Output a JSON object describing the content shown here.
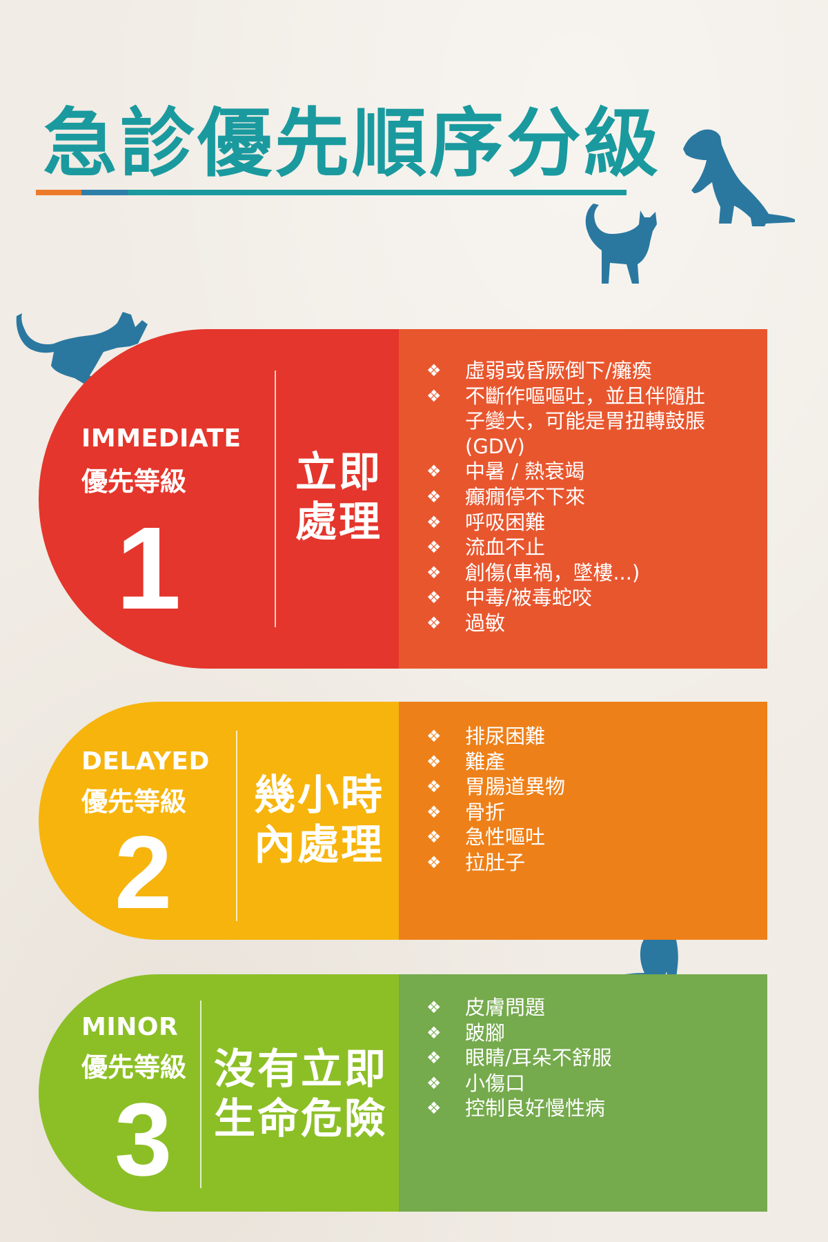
{
  "title": "急診優先順序分級",
  "colors": {
    "title": "#1a9a9e",
    "silhouette": "#2a78a0",
    "immediate_left": "#e4362c",
    "immediate_right": "#e8562e",
    "delayed_left": "#f6b40d",
    "delayed_right": "#ee8019",
    "minor_left": "#8cbf26",
    "minor_right": "#75aa4d"
  },
  "icons": [
    "dog-silhouette-icon",
    "cat-silhouette-icon",
    "diamond-bullet-icon"
  ],
  "levels": [
    {
      "en": "IMMEDIATE",
      "zh": "優先等級",
      "number": "1",
      "action_lines": [
        "立即",
        "處理"
      ],
      "bullet": "❖",
      "items": [
        "虛弱或昏厥倒下/癱瘓",
        "不斷作嘔嘔吐，並且伴隨肚",
        "子變大，可能是胃扭轉鼓脹",
        "(GDV)",
        "中暑 / 熱衰竭",
        "癲癇停不下來",
        "呼吸困難",
        "流血不止",
        "創傷(車禍，墜樓...)",
        "中毒/被毒蛇咬",
        "過敏"
      ]
    },
    {
      "en": "DELAYED",
      "zh": "優先等級",
      "number": "2",
      "action_lines": [
        "幾小時",
        "內處理"
      ],
      "bullet": "❖",
      "items": [
        "排尿困難",
        "難產",
        "胃腸道異物",
        "骨折",
        "急性嘔吐",
        "拉肚子"
      ]
    },
    {
      "en": "MINOR",
      "zh": "優先等級",
      "number": "3",
      "action_lines": [
        "沒有立即",
        "生命危險"
      ],
      "bullet": "❖",
      "items": [
        "皮膚問題",
        "跛腳",
        "眼睛/耳朵不舒服",
        "小傷口",
        "控制良好慢性病"
      ]
    }
  ]
}
